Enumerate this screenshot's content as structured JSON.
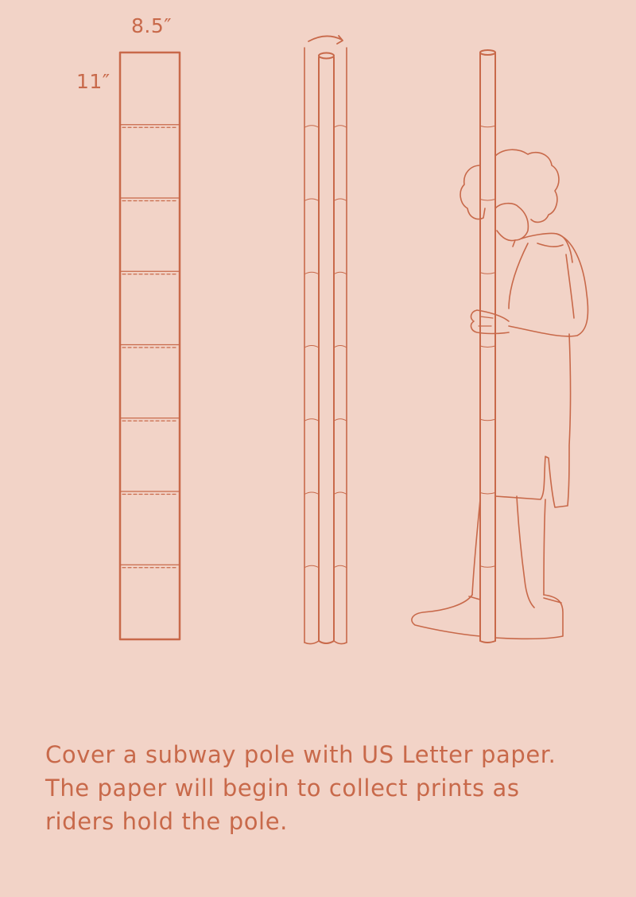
{
  "dimensions": {
    "width_label": "8.5″",
    "height_label": "11″"
  },
  "caption": {
    "line1": "Cover a subway pole with US Letter paper.",
    "line2": "The paper will begin to collect prints as",
    "line3": "riders hold the pole."
  },
  "colors": {
    "background": "#f2d3c7",
    "line": "#c8694a"
  },
  "diagram": {
    "sheet_count": 8,
    "steps": [
      "flat-paper-strip",
      "paper-wrapped-pole",
      "rider-holding-pole"
    ]
  }
}
